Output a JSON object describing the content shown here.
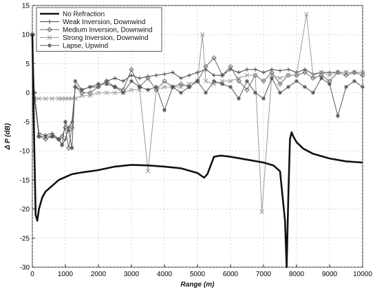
{
  "chart_data": {
    "type": "line",
    "title": "",
    "xlabel": "Range (m)",
    "ylabel": "Δ P (dB)",
    "xlim": [
      0,
      10000
    ],
    "ylim": [
      -30,
      15
    ],
    "x_ticks": [
      0,
      1000,
      2000,
      3000,
      4000,
      5000,
      6000,
      7000,
      8000,
      9000,
      10000
    ],
    "y_ticks": [
      15,
      10,
      5,
      0,
      -5,
      -10,
      -15,
      -20,
      -25,
      -30
    ],
    "legend_position": "top-left",
    "series": [
      {
        "name": "No Refraction",
        "color": "#111111",
        "marker": "none",
        "x": [
          0,
          60,
          100,
          150,
          200,
          300,
          400,
          500,
          600,
          800,
          1000,
          1200,
          1500,
          2000,
          2500,
          3000,
          3500,
          4000,
          4500,
          5000,
          5200,
          5300,
          5500,
          5700,
          6000,
          6500,
          7000,
          7300,
          7500,
          7650,
          7700,
          7750,
          7800,
          7850,
          7900,
          8000,
          8200,
          8500,
          9000,
          9500,
          10000
        ],
        "y": [
          10,
          -10,
          -21,
          -22,
          -20,
          -18,
          -17,
          -16.5,
          -16,
          -15,
          -14.5,
          -14,
          -13.7,
          -13.3,
          -12.7,
          -12.4,
          -12.5,
          -12.7,
          -13,
          -13.8,
          -14.6,
          -14,
          -11,
          -10.8,
          -11,
          -11.5,
          -12,
          -12.5,
          -13.5,
          -22,
          -30,
          -18,
          -8,
          -6.8,
          -7.5,
          -8.5,
          -9.6,
          -10.5,
          -11.3,
          -11.8,
          -12
        ]
      },
      {
        "name": "Weak Inversion, Downwind",
        "color": "#444444",
        "marker": "plus",
        "x": [
          0,
          60,
          200,
          400,
          600,
          800,
          900,
          1000,
          1100,
          1200,
          1300,
          1500,
          1750,
          2000,
          2250,
          2500,
          2750,
          3000,
          3250,
          3500,
          3750,
          4000,
          4250,
          4500,
          4750,
          5000,
          5250,
          5500,
          5750,
          6000,
          6250,
          6500,
          6750,
          7000,
          7250,
          7500,
          7750,
          8000,
          8250,
          8500,
          8750,
          9000,
          9250,
          9500,
          9750,
          10000
        ],
        "y": [
          10,
          0,
          -7,
          -7.3,
          -7,
          -8,
          -9,
          -8,
          -6,
          -5,
          1,
          0.5,
          1,
          1,
          2,
          2.5,
          2,
          3,
          2.5,
          2.8,
          3,
          3.2,
          3.5,
          2.5,
          3,
          3.5,
          4,
          3,
          3,
          4,
          3.5,
          4,
          4,
          3.5,
          4,
          3.8,
          4,
          3.5,
          4,
          3.2,
          3.5,
          3.5,
          3.5,
          3.5,
          3.5,
          3.5
        ]
      },
      {
        "name": "Medium Inversion, Downwind",
        "color": "#666666",
        "marker": "diamond",
        "x": [
          0,
          60,
          200,
          400,
          600,
          800,
          900,
          1000,
          1100,
          1200,
          1300,
          1500,
          1750,
          2000,
          2250,
          2500,
          2750,
          3000,
          3250,
          3500,
          3750,
          4000,
          4250,
          4500,
          4750,
          5000,
          5250,
          5500,
          5750,
          6000,
          6250,
          6500,
          6750,
          7000,
          7250,
          7500,
          7750,
          8000,
          8250,
          8500,
          8750,
          9000,
          9250,
          9500,
          9750,
          10000
        ],
        "y": [
          10,
          0,
          -7.5,
          -8,
          -7.5,
          -8,
          -7.5,
          -6,
          -9.5,
          -6,
          1,
          0,
          0,
          1,
          2,
          1,
          0.5,
          4,
          1,
          2.5,
          0.5,
          2,
          1,
          1.5,
          1,
          2,
          4.5,
          6,
          3,
          4.5,
          2,
          0.5,
          3,
          2,
          3.5,
          1.5,
          3,
          3,
          3.5,
          2.5,
          3,
          2,
          3.5,
          3,
          3.5,
          3
        ]
      },
      {
        "name": "Strong Inversion, Downwind",
        "color": "#999999",
        "marker": "x",
        "x": [
          0,
          60,
          200,
          400,
          600,
          800,
          900,
          1000,
          1100,
          1200,
          1300,
          1500,
          1750,
          2000,
          2250,
          2500,
          2750,
          3000,
          3250,
          3500,
          3750,
          4000,
          4250,
          4500,
          4750,
          5000,
          5150,
          5250,
          5500,
          5750,
          6000,
          6250,
          6500,
          6750,
          6950,
          7250,
          7500,
          7750,
          8000,
          8300,
          8500,
          8750,
          9000,
          9250,
          9500,
          9750,
          10000
        ],
        "y": [
          10,
          -1,
          -1,
          -1,
          -1,
          -1,
          -1,
          -1,
          -1,
          -1,
          -1,
          -0.5,
          -0.5,
          0,
          0,
          0,
          0,
          0.5,
          0.5,
          -13.5,
          0.5,
          1,
          1,
          1,
          1.5,
          2,
          10,
          2,
          1.5,
          2,
          2,
          2.5,
          3,
          3,
          -20.5,
          3,
          2.5,
          3,
          3,
          13.5,
          3,
          3.5,
          3,
          3.5,
          3.5,
          3.5,
          3.5
        ]
      },
      {
        "name": "Lapse, Upwind",
        "color": "#555555",
        "marker": "star",
        "x": [
          0,
          60,
          200,
          400,
          600,
          800,
          900,
          1000,
          1100,
          1200,
          1300,
          1500,
          1750,
          2000,
          2250,
          2500,
          2750,
          3000,
          3250,
          3500,
          3750,
          4000,
          4250,
          4500,
          4750,
          5000,
          5250,
          5500,
          5750,
          6000,
          6250,
          6500,
          6750,
          7000,
          7250,
          7500,
          7750,
          8000,
          8250,
          8500,
          8750,
          9000,
          9250,
          9500,
          9750,
          10000
        ],
        "y": [
          10,
          -1,
          -7.5,
          -7.5,
          -7.5,
          -8,
          -9,
          -5,
          -6.5,
          -9.5,
          2,
          0.5,
          1,
          1.5,
          1.5,
          1,
          0,
          2,
          1,
          0.5,
          1,
          -3,
          1,
          0,
          1,
          2,
          0,
          2,
          1.5,
          1,
          -1,
          2,
          0,
          -1,
          2.5,
          0,
          1,
          2,
          1,
          0,
          2.5,
          1.5,
          -4,
          1,
          2,
          1
        ]
      }
    ]
  }
}
